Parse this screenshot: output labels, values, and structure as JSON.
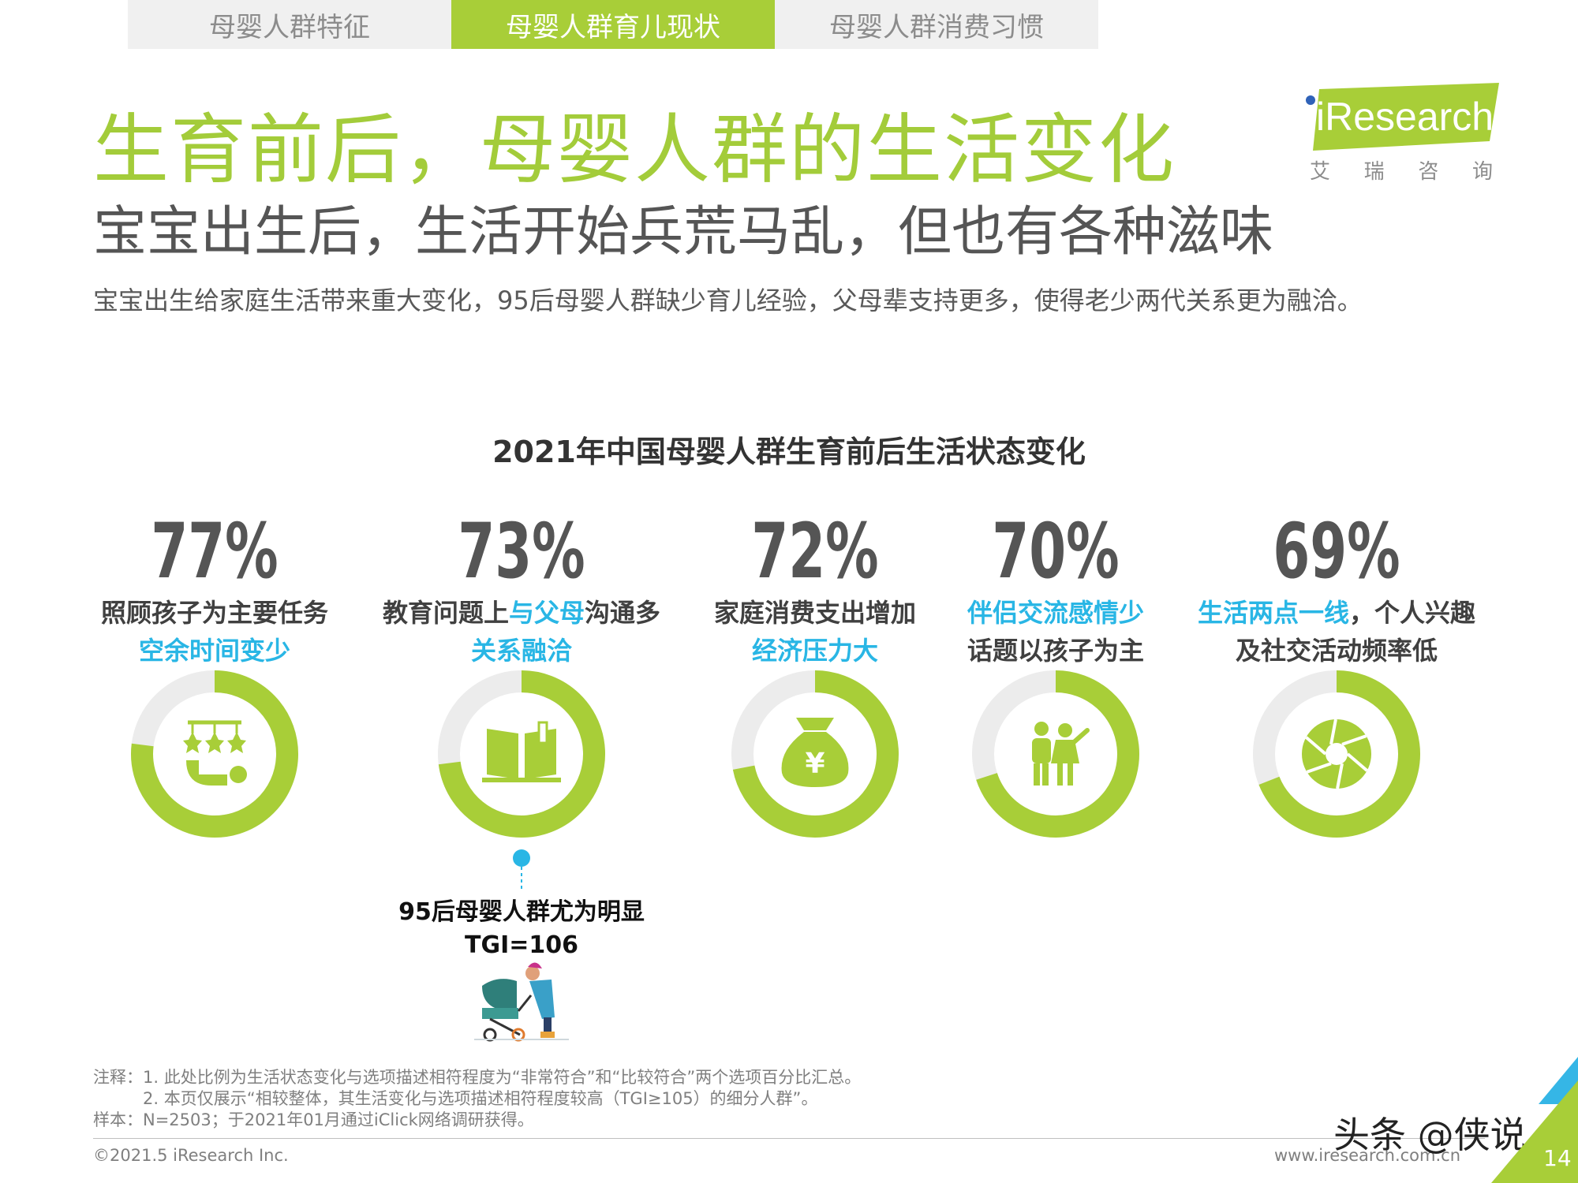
{
  "tabs": [
    {
      "label": "母婴人群特征"
    },
    {
      "label": "母婴人群育儿现状"
    },
    {
      "label": "母婴人群消费习惯"
    }
  ],
  "title": "生育前后，母婴人群的生活变化",
  "subtitle": "宝宝出生后，生活开始兵荒马乱，但也有各种滋味",
  "description": "宝宝出生给家庭生活带来重大变化，95后母婴人群缺少育儿经验，父母辈支持更多，使得老少两代关系更为融洽。",
  "logo": {
    "brand": "iResearch",
    "cn": [
      "艾",
      "瑞",
      "咨",
      "询"
    ]
  },
  "colors": {
    "accent_green": "#a8ce38",
    "accent_blue": "#29b6e5",
    "ring_remainder": "#ececec",
    "text_dark": "#404040"
  },
  "chart_data": {
    "type": "donut",
    "title": "2021年中国母婴人群生育前后生活状态变化",
    "items": [
      {
        "value": 77,
        "label": "77%",
        "line1": [
          {
            "t": "照顾孩子为主要任务",
            "hl": false
          }
        ],
        "line2": [
          {
            "t": "空余时间变少",
            "hl": true
          }
        ],
        "icon": "baby-mobile-icon"
      },
      {
        "value": 73,
        "label": "73%",
        "line1": [
          {
            "t": "教育问题上",
            "hl": false
          },
          {
            "t": "与父母",
            "hl": true
          },
          {
            "t": "沟通多",
            "hl": false
          }
        ],
        "line2": [
          {
            "t": "关系融洽",
            "hl": true
          }
        ],
        "icon": "book-icon"
      },
      {
        "value": 72,
        "label": "72%",
        "line1": [
          {
            "t": "家庭消费支出增加",
            "hl": false
          }
        ],
        "line2": [
          {
            "t": "经济压力大",
            "hl": true
          }
        ],
        "icon": "money-bag-icon"
      },
      {
        "value": 70,
        "label": "70%",
        "line1": [
          {
            "t": "伴侣交流感情少",
            "hl": true
          }
        ],
        "line2": [
          {
            "t": "话题以孩子为主",
            "hl": false
          }
        ],
        "icon": "couple-icon"
      },
      {
        "value": 69,
        "label": "69%",
        "line1": [
          {
            "t": "生活两点一线",
            "hl": true
          },
          {
            "t": "，个人兴趣",
            "hl": false
          }
        ],
        "line2": [
          {
            "t": "及社交活动频率低",
            "hl": false
          }
        ],
        "icon": "aperture-icon"
      }
    ],
    "annotation": {
      "line1": "95后母婴人群尤为明显",
      "line2": "TGI=106"
    }
  },
  "notes": [
    "注释：1. 此处比例为生活状态变化与选项描述相符程度为“非常符合”和“比较符合”两个选项百分比汇总。",
    "　　　2. 本页仅展示“相较整体，其生活变化与选项描述相符程度较高（TGI≥105）的细分人群”。",
    "样本：N=2503；于2021年01月通过iClick网络调研获得。"
  ],
  "copyright": "©2021.5 iResearch Inc.",
  "website": "www.iresearch.com.cn",
  "watermark": "头条 @侠说",
  "page_number": "14"
}
